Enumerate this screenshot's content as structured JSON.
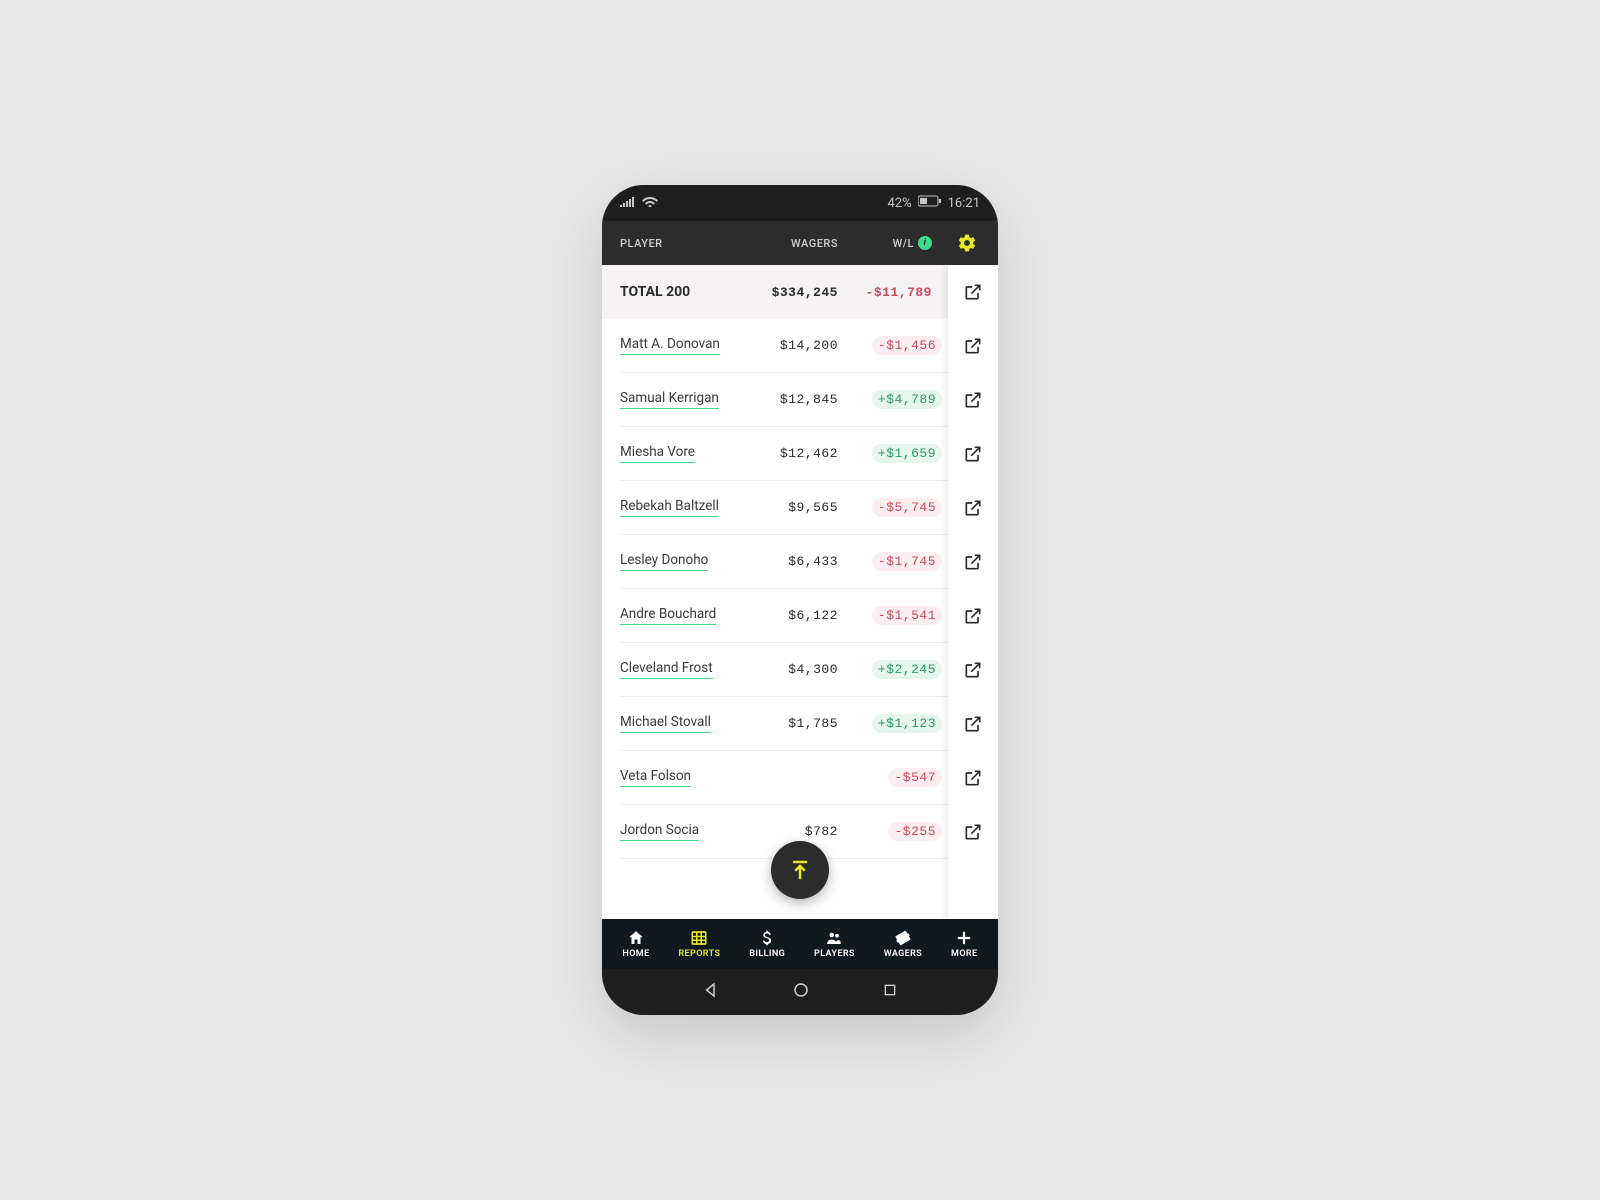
{
  "colors": {
    "page_bg": "#e8e8e8",
    "phone_bg": "#1a1a1a",
    "status_bg": "#1e1e1e",
    "header_bg": "#2c2c2c",
    "body_bg": "#ffffff",
    "total_row_bg": "#f5f3f3",
    "accent_yellow": "#e8e82a",
    "accent_green": "#3fd98a",
    "neg_text": "#c94a5a",
    "neg_bg": "#fceef0",
    "pos_text": "#2a9a6a",
    "pos_bg": "#e6f6ee",
    "bottom_nav_bg": "#101820",
    "row_border": "#eeeeee",
    "header_text": "#d0d0d0",
    "row_text": "#2a2a2a"
  },
  "statusbar": {
    "battery": "42%",
    "time": "16:21"
  },
  "header": {
    "col_player": "PLAYER",
    "col_wagers": "WAGERS",
    "col_wl": "W/L"
  },
  "total": {
    "label": "TOTAL 200",
    "wagers": "$334,245",
    "wl": "-$11,789"
  },
  "rows": [
    {
      "name": "Matt A. Donovan",
      "wagers": "$14,200",
      "wl": "-$1,456",
      "dir": "neg"
    },
    {
      "name": "Samual Kerrigan",
      "wagers": "$12,845",
      "wl": "+$4,789",
      "dir": "pos"
    },
    {
      "name": "Miesha Vore",
      "wagers": "$12,462",
      "wl": "+$1,659",
      "dir": "pos"
    },
    {
      "name": "Rebekah Baltzell",
      "wagers": "$9,565",
      "wl": "-$5,745",
      "dir": "neg"
    },
    {
      "name": "Lesley Donoho",
      "wagers": "$6,433",
      "wl": "-$1,745",
      "dir": "neg"
    },
    {
      "name": "Andre Bouchard",
      "wagers": "$6,122",
      "wl": "-$1,541",
      "dir": "neg"
    },
    {
      "name": "Cleveland Frost",
      "wagers": "$4,300",
      "wl": "+$2,245",
      "dir": "pos"
    },
    {
      "name": "Michael Stovall",
      "wagers": "$1,785",
      "wl": "+$1,123",
      "dir": "pos"
    },
    {
      "name": "Veta Folson",
      "wagers": "",
      "wl": "-$547",
      "dir": "neg"
    },
    {
      "name": "Jordon Socia",
      "wagers": "$782",
      "wl": "-$255",
      "dir": "neg"
    }
  ],
  "nav": {
    "items": [
      {
        "label": "HOME",
        "active": false
      },
      {
        "label": "REPORTS",
        "active": true
      },
      {
        "label": "BILLING",
        "active": false
      },
      {
        "label": "PLAYERS",
        "active": false
      },
      {
        "label": "WAGERS",
        "active": false
      },
      {
        "label": "MORE",
        "active": false
      }
    ]
  }
}
